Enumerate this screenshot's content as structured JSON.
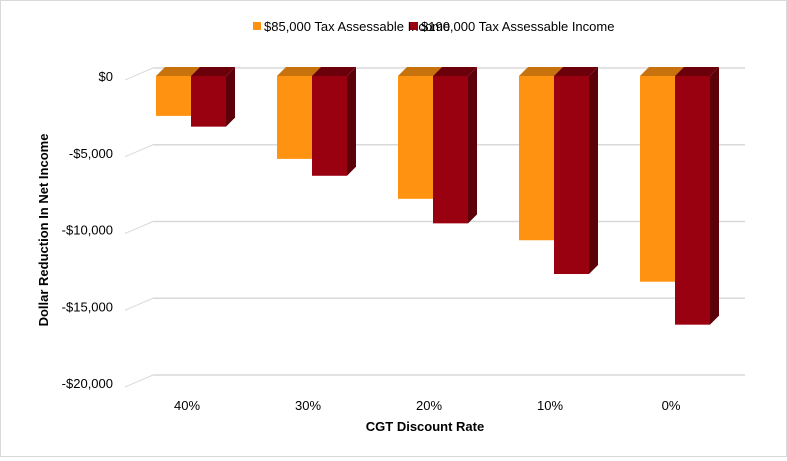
{
  "chart_data": {
    "type": "bar",
    "subtype": "3d-clustered-column",
    "title": "",
    "xlabel": "CGT Discount Rate",
    "ylabel": "Dollar Reduction In Net Income",
    "categories": [
      "40%",
      "30%",
      "20%",
      "10%",
      "0%"
    ],
    "series": [
      {
        "name": "$85,000 Tax Assessable Income",
        "color": "#FF9210",
        "values": [
          -2600,
          -5400,
          -8000,
          -10700,
          -13400
        ]
      },
      {
        "name": "$190,000 Tax Assessable Income",
        "color": "#990010",
        "values": [
          -3300,
          -6500,
          -9600,
          -12900,
          -16200
        ]
      }
    ],
    "ylim": [
      -20000,
      0
    ],
    "yticks": [
      0,
      -5000,
      -10000,
      -15000,
      -20000
    ],
    "ytick_labels": [
      "$0",
      "-$5,000",
      "-$10,000",
      "-$15,000",
      "-$20,000"
    ],
    "grid": true,
    "legend": {
      "position": "top"
    }
  }
}
